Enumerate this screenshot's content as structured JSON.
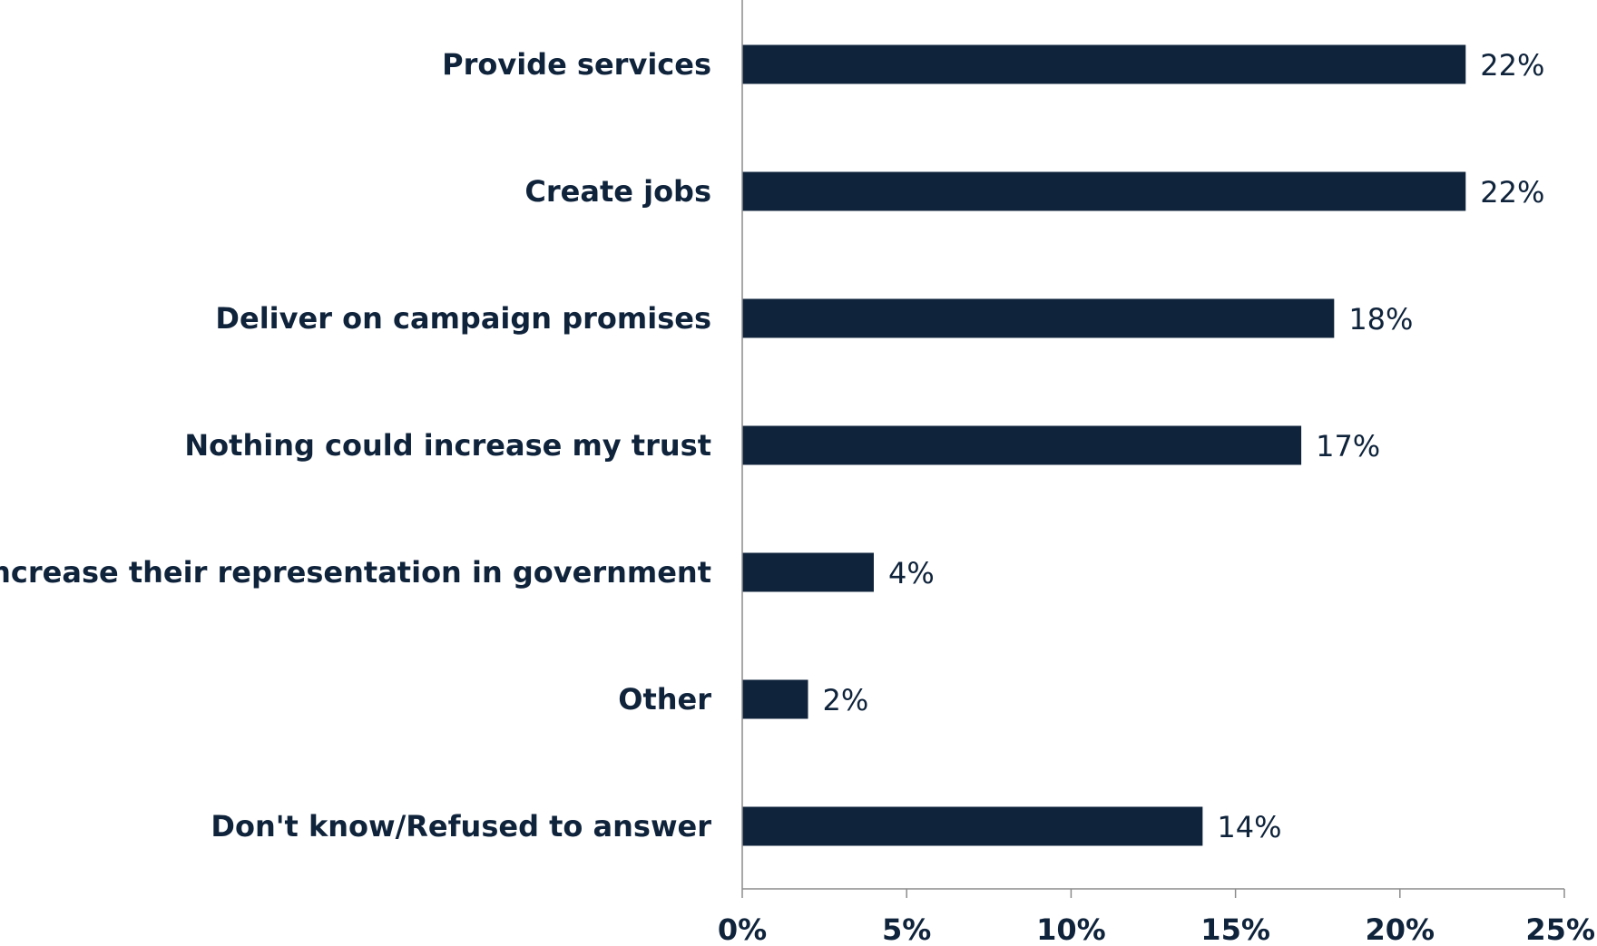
{
  "chart_data": {
    "type": "bar",
    "orientation": "horizontal",
    "categories": [
      "Provide services",
      "Create jobs",
      "Deliver on campaign promises",
      "Nothing could increase my trust",
      "Increase their representation in government",
      "Other",
      "Don't know/Refused to answer"
    ],
    "values": [
      22,
      22,
      18,
      17,
      4,
      2,
      14
    ],
    "value_labels": [
      "22%",
      "22%",
      "18%",
      "17%",
      "4%",
      "2%",
      "14%"
    ],
    "xlim": [
      0,
      25
    ],
    "xticks": [
      0,
      5,
      10,
      15,
      20,
      25
    ],
    "xtick_labels": [
      "0%",
      "5%",
      "10%",
      "15%",
      "20%",
      "25%"
    ],
    "title": "",
    "xlabel": "",
    "ylabel": "",
    "grid": false,
    "legend": "none",
    "colors": {
      "bar": "#0f233b",
      "text": "#0f233b",
      "axis": "#8c8c8c"
    }
  }
}
